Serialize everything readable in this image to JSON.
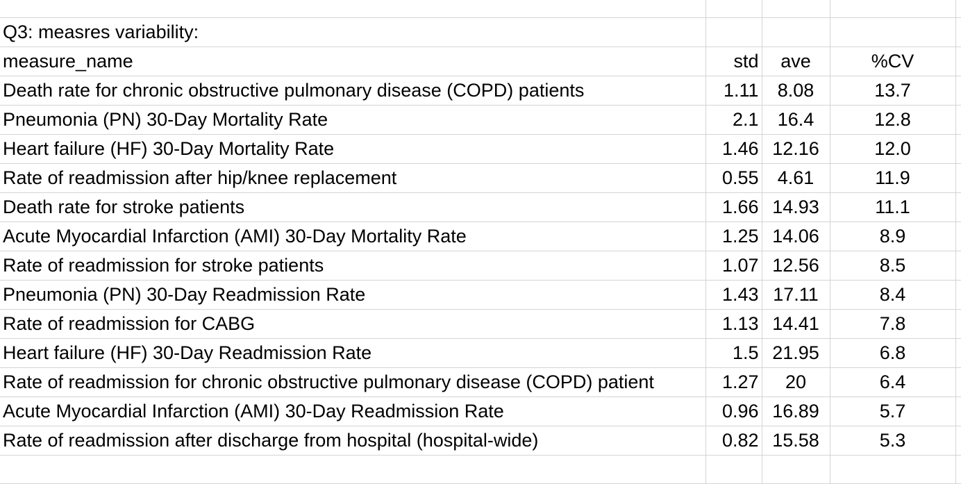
{
  "sheet": {
    "title": "Q3: measres variability:",
    "headers": {
      "measure": "measure_name",
      "std": "std",
      "ave": "ave",
      "cv": "%CV"
    },
    "rows": [
      {
        "measure": "Death rate for chronic obstructive pulmonary disease (COPD) patients",
        "std": "1.11",
        "ave": "8.08",
        "cv": "13.7"
      },
      {
        "measure": "Pneumonia (PN) 30-Day Mortality Rate",
        "std": "2.1",
        "ave": "16.4",
        "cv": "12.8"
      },
      {
        "measure": "Heart failure (HF) 30-Day Mortality Rate",
        "std": "1.46",
        "ave": "12.16",
        "cv": "12.0"
      },
      {
        "measure": "Rate of readmission after hip/knee replacement",
        "std": "0.55",
        "ave": "4.61",
        "cv": "11.9"
      },
      {
        "measure": "Death rate for stroke patients",
        "std": "1.66",
        "ave": "14.93",
        "cv": "11.1"
      },
      {
        "measure": "Acute Myocardial Infarction (AMI) 30-Day Mortality Rate",
        "std": "1.25",
        "ave": "14.06",
        "cv": "8.9"
      },
      {
        "measure": "Rate of readmission for stroke patients",
        "std": "1.07",
        "ave": "12.56",
        "cv": "8.5"
      },
      {
        "measure": "Pneumonia (PN) 30-Day Readmission Rate",
        "std": "1.43",
        "ave": "17.11",
        "cv": "8.4"
      },
      {
        "measure": "Rate of readmission for CABG",
        "std": "1.13",
        "ave": "14.41",
        "cv": "7.8"
      },
      {
        "measure": "Heart failure (HF) 30-Day Readmission Rate",
        "std": "1.5",
        "ave": "21.95",
        "cv": "6.8"
      },
      {
        "measure": "Rate of readmission for chronic obstructive pulmonary disease (COPD) patient",
        "std": "1.27",
        "ave": "20",
        "cv": "6.4"
      },
      {
        "measure": "Acute Myocardial Infarction (AMI) 30-Day Readmission Rate",
        "std": "0.96",
        "ave": "16.89",
        "cv": "5.7"
      },
      {
        "measure": "Rate of readmission after discharge from hospital (hospital-wide)",
        "std": "0.82",
        "ave": "15.58",
        "cv": "5.3"
      }
    ]
  }
}
